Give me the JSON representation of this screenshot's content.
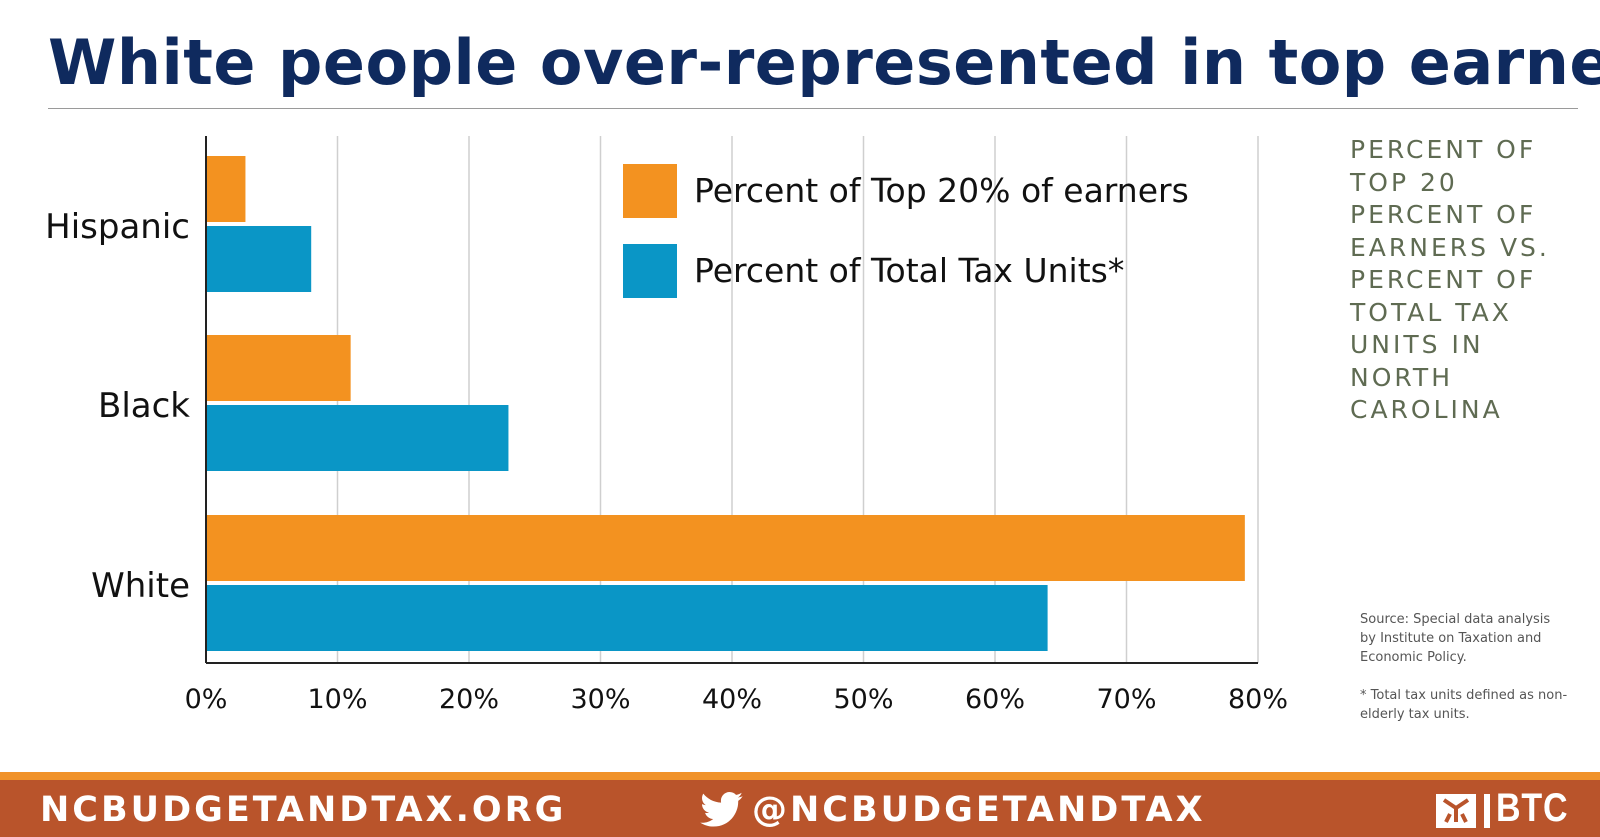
{
  "title": "White people over-represented in top earners",
  "side_description": "Percent of Top 20 Percent of Earners vs. Percent of Total Tax Units in North Carolina",
  "source_note": "Source: Special data analysis by Institute on Taxation and Economic Policy.",
  "footnote": "* Total tax units defined as non-elderly tax units.",
  "footer": {
    "website": "NCBUDGETANDTAX.ORG",
    "twitter_handle": "@NCBUDGETANDTAX",
    "logo_text": "BTC",
    "icons": [
      "twitter-icon",
      "btc-logo-icon"
    ]
  },
  "colors": {
    "title": "#0f2a5e",
    "orange": "#f39220",
    "blue": "#0a96c6",
    "footer": "#b9542b",
    "footer_stripe": "#f0922a"
  },
  "chart_data": {
    "type": "bar",
    "orientation": "horizontal",
    "categories": [
      "Hispanic",
      "Black",
      "White"
    ],
    "series": [
      {
        "name": "Percent of Top 20% of earners",
        "color": "#f39220",
        "values": [
          3,
          11,
          79
        ]
      },
      {
        "name": "Percent of Total Tax Units*",
        "color": "#0a96c6",
        "values": [
          8,
          23,
          64
        ]
      }
    ],
    "xlim": [
      0,
      80
    ],
    "xticks": [
      "0%",
      "10%",
      "20%",
      "30%",
      "40%",
      "50%",
      "60%",
      "70%",
      "80%"
    ],
    "grid": "vertical",
    "legend_position": "top-right"
  }
}
